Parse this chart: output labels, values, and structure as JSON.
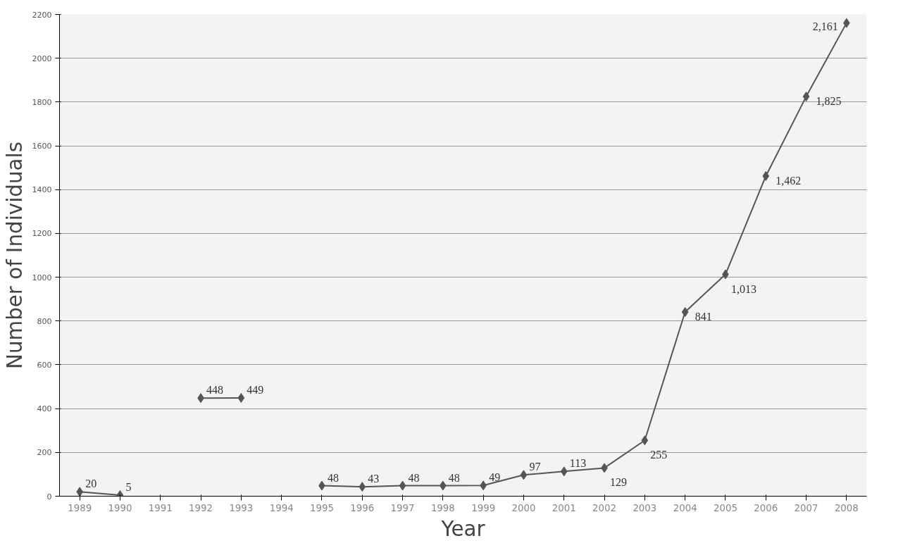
{
  "chart_data": {
    "type": "line",
    "xlabel": "Year",
    "ylabel": "Number of Individuals",
    "categories": [
      "1989",
      "1990",
      "1991",
      "1992",
      "1993",
      "1994",
      "1995",
      "1996",
      "1997",
      "1998",
      "1999",
      "2000",
      "2001",
      "2002",
      "2003",
      "2004",
      "2005",
      "2006",
      "2007",
      "2008"
    ],
    "series": [
      {
        "color": "#555555",
        "values": [
          20,
          5,
          null,
          448,
          449,
          null,
          48,
          43,
          48,
          48,
          49,
          97,
          113,
          129,
          255,
          841,
          1013,
          1462,
          1825,
          2161
        ]
      }
    ],
    "value_labels": [
      "20",
      "5",
      null,
      "448",
      "449",
      null,
      "48",
      "43",
      "48",
      "48",
      "49",
      "97",
      "113",
      "129",
      "255",
      "841",
      "1,013",
      "1,462",
      "1,825",
      "2,161"
    ],
    "ylim": [
      0,
      2200
    ],
    "yticks": [
      0,
      200,
      400,
      600,
      800,
      1000,
      1200,
      1400,
      1600,
      1800,
      2000,
      2200
    ],
    "grid": "y",
    "marker": "diamond",
    "line_style": "solid"
  }
}
